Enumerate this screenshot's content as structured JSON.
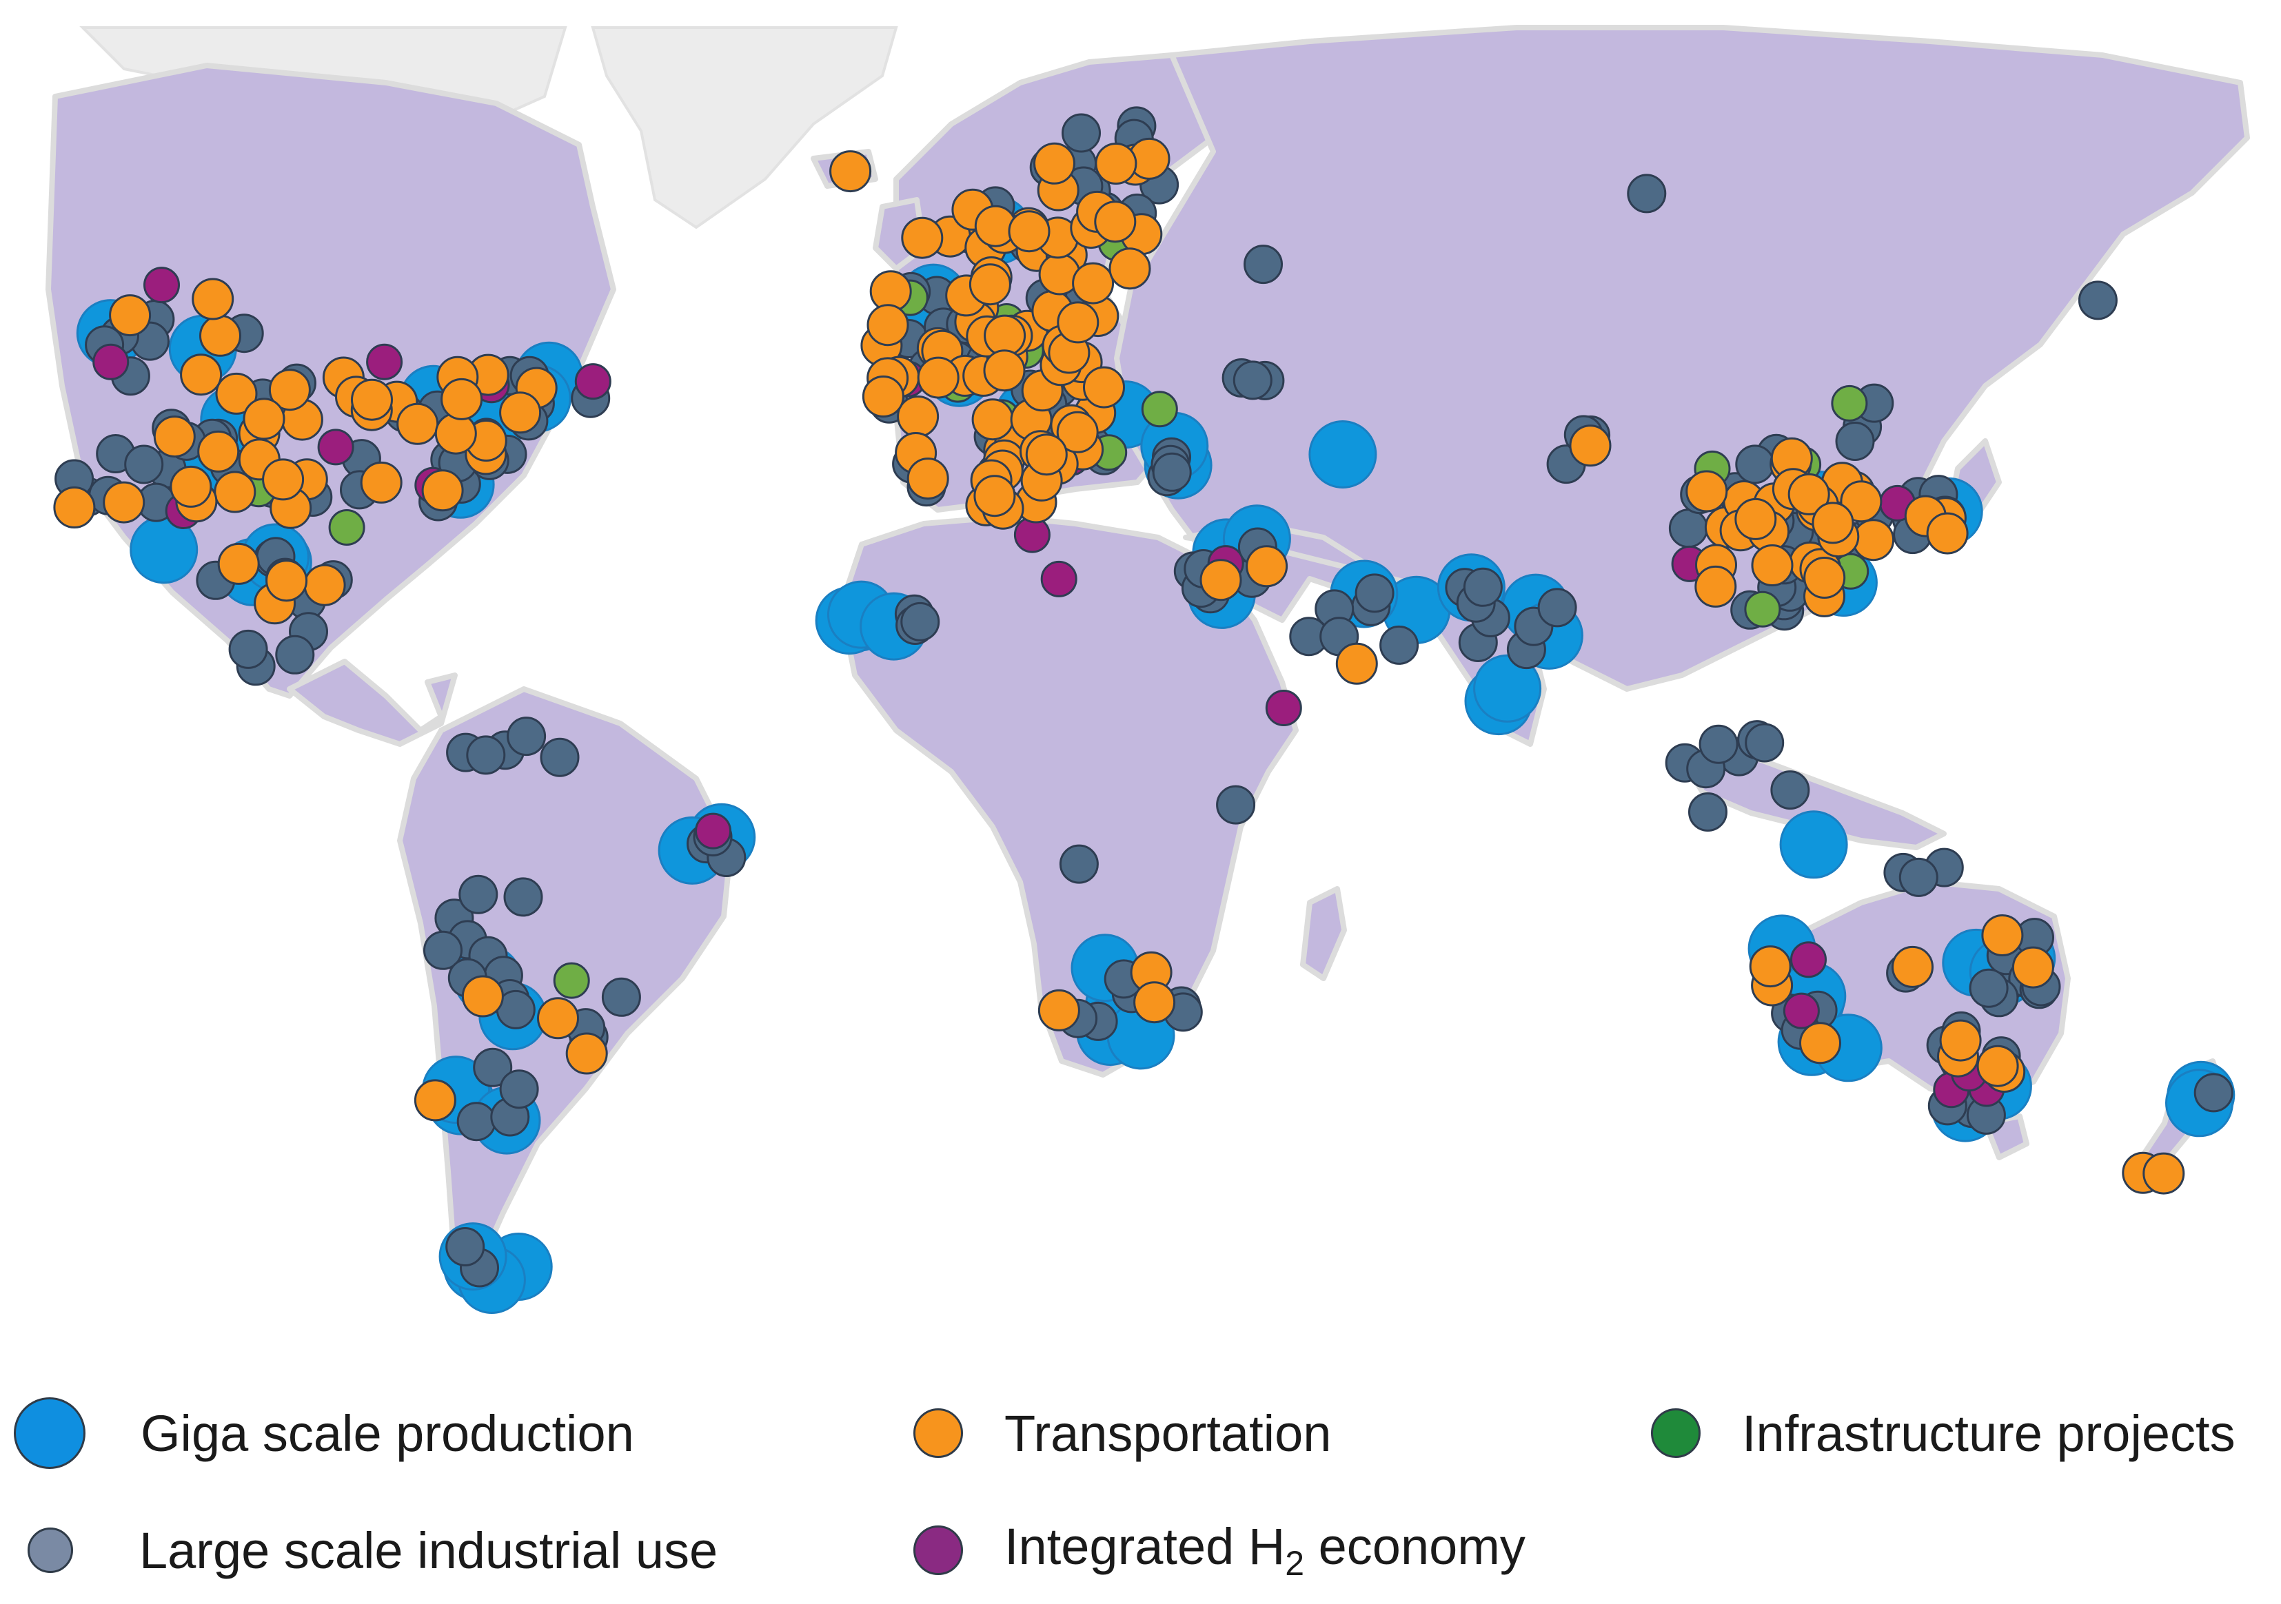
{
  "legend": {
    "giga": {
      "label": "Giga scale production",
      "color": "#0f8fe0"
    },
    "transport": {
      "label": "Transportation",
      "color": "#f7941d"
    },
    "infra": {
      "label": "Infrastructure projects",
      "color": "#1f8a3a"
    },
    "industrial": {
      "label": "Large scale industrial use",
      "color": "#7a8aa4"
    },
    "economy": {
      "label_before": "Integrated H",
      "label_sub": "2",
      "label_after": " economy",
      "color": "#8a2a82"
    }
  },
  "marker_colors": {
    "giga": "#0f96dc",
    "transport": "#f7941d",
    "infra": "#6fae45",
    "industrial": "#4d6a86",
    "economy": "#9b1e7d"
  }
}
